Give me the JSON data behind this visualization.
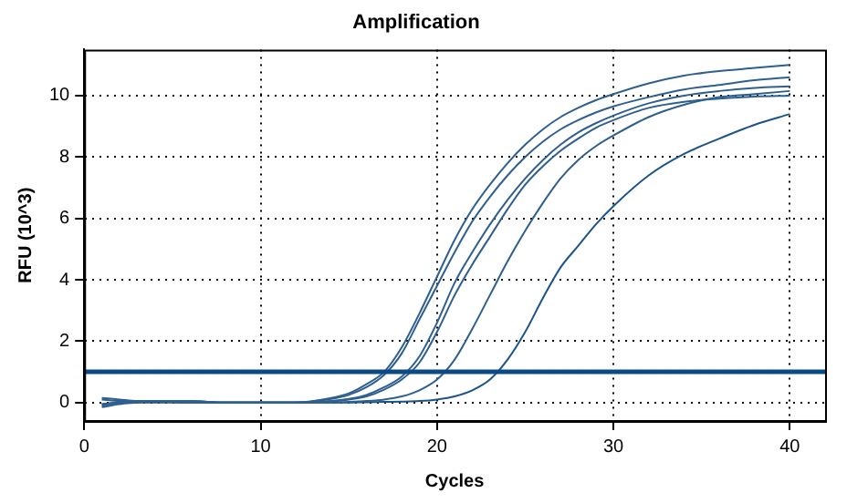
{
  "chart_data": {
    "type": "line",
    "title": "Amplification",
    "xlabel": "Cycles",
    "ylabel": "RFU (10^3)",
    "x": [
      1,
      2,
      3,
      4,
      6,
      8,
      10,
      12,
      14,
      15,
      16,
      17,
      18,
      19,
      20,
      21,
      22,
      23,
      24,
      25,
      26,
      27,
      28,
      29,
      30,
      32,
      34,
      36,
      38,
      40
    ],
    "xlim": [
      0,
      42
    ],
    "xticks": [
      0,
      10,
      20,
      30,
      40
    ],
    "ylim": [
      -0.6,
      11.5
    ],
    "yticks": [
      0,
      2,
      4,
      6,
      8,
      10
    ],
    "grid": true,
    "marker": "none",
    "line_style": "solid",
    "series": [
      {
        "color": "#2e5f8e",
        "values": [
          0.1,
          0.05,
          0.05,
          0.05,
          0.05,
          0,
          0,
          0,
          0.15,
          0.3,
          0.6,
          1.0,
          1.8,
          2.9,
          4.1,
          5.3,
          6.3,
          7.1,
          7.8,
          8.4,
          8.9,
          9.3,
          9.6,
          9.85,
          10.05,
          10.4,
          10.65,
          10.8,
          10.9,
          11.0
        ]
      },
      {
        "color": "#2e5f8e",
        "values": [
          -0.1,
          0,
          0.05,
          0.05,
          0.05,
          0,
          0,
          0,
          0.12,
          0.25,
          0.5,
          0.9,
          1.6,
          2.7,
          3.8,
          4.9,
          5.9,
          6.7,
          7.4,
          8.0,
          8.5,
          8.9,
          9.2,
          9.45,
          9.65,
          9.95,
          10.2,
          10.35,
          10.5,
          10.6
        ]
      },
      {
        "color": "#2e5f8e",
        "values": [
          0.15,
          0.1,
          0.05,
          0.05,
          0,
          0,
          0,
          0,
          0.05,
          0.12,
          0.25,
          0.5,
          0.85,
          1.5,
          2.6,
          3.9,
          4.9,
          5.8,
          6.6,
          7.3,
          7.9,
          8.4,
          8.8,
          9.1,
          9.35,
          9.75,
          10.0,
          10.15,
          10.25,
          10.3
        ]
      },
      {
        "color": "#2e5f8e",
        "values": [
          -0.15,
          -0.05,
          0,
          0.05,
          0,
          0,
          0,
          0,
          0.04,
          0.1,
          0.2,
          0.42,
          0.75,
          1.3,
          2.3,
          3.5,
          4.5,
          5.4,
          6.3,
          7.1,
          7.7,
          8.2,
          8.6,
          8.95,
          9.2,
          9.6,
          9.8,
          9.9,
          9.97,
          10.0
        ]
      },
      {
        "color": "#2e5f8e",
        "values": [
          -0.05,
          0,
          0.05,
          0.05,
          0,
          0,
          0,
          0,
          0,
          0.02,
          0.05,
          0.1,
          0.2,
          0.4,
          0.75,
          1.4,
          2.4,
          3.5,
          4.6,
          5.6,
          6.5,
          7.3,
          7.9,
          8.35,
          8.7,
          9.3,
          9.7,
          9.95,
          10.05,
          10.15
        ]
      },
      {
        "color": "#1d5488",
        "values": [
          -0.05,
          0,
          0,
          0,
          0,
          0,
          0,
          0,
          0,
          0,
          0.01,
          0.02,
          0.03,
          0.05,
          0.1,
          0.2,
          0.4,
          0.75,
          1.4,
          2.3,
          3.4,
          4.4,
          5.1,
          5.8,
          6.4,
          7.4,
          8.1,
          8.6,
          9.05,
          9.4
        ]
      }
    ],
    "ref_lines": [
      {
        "axis": "y",
        "value": 1,
        "color": "#0d4a85",
        "line_style": "solid"
      }
    ]
  }
}
